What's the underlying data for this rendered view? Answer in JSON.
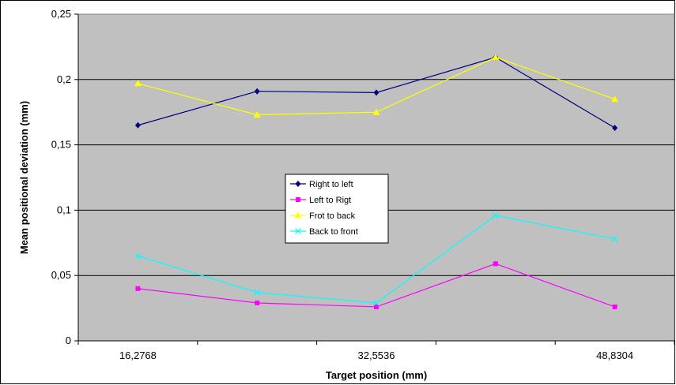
{
  "chart_data": {
    "type": "line",
    "title": "",
    "xlabel": "Target position (mm)",
    "ylabel": "Mean positional deviation (mm)",
    "x_tick_labels": [
      "16,2768",
      "32,5536",
      "48,8304"
    ],
    "y_tick_labels": [
      "0",
      "0,05",
      "0,1",
      "0,15",
      "0,2",
      "0,25"
    ],
    "ylim": [
      0,
      0.25
    ],
    "y_ticks": [
      0,
      0.05,
      0.1,
      0.15,
      0.2,
      0.25
    ],
    "categories": [
      "16,2768",
      "",
      "32,5536",
      "",
      "48,8304"
    ],
    "grid": "horizontal",
    "legend_position": "center",
    "plot_background": "#c0c0c0",
    "series": [
      {
        "name": "Right to left",
        "values": [
          0.165,
          0.191,
          0.19,
          0.217,
          0.163
        ],
        "color": "#000080",
        "marker": "diamond"
      },
      {
        "name": "Left to Rigt",
        "values": [
          0.04,
          0.029,
          0.026,
          0.059,
          0.026
        ],
        "color": "#ff00ff",
        "marker": "square"
      },
      {
        "name": "Frot to back",
        "values": [
          0.197,
          0.173,
          0.175,
          0.217,
          0.185
        ],
        "color": "#ffff00",
        "marker": "triangle"
      },
      {
        "name": "Back to front",
        "values": [
          0.065,
          0.037,
          0.029,
          0.096,
          0.078
        ],
        "color": "#00ffff",
        "marker": "x"
      }
    ]
  }
}
